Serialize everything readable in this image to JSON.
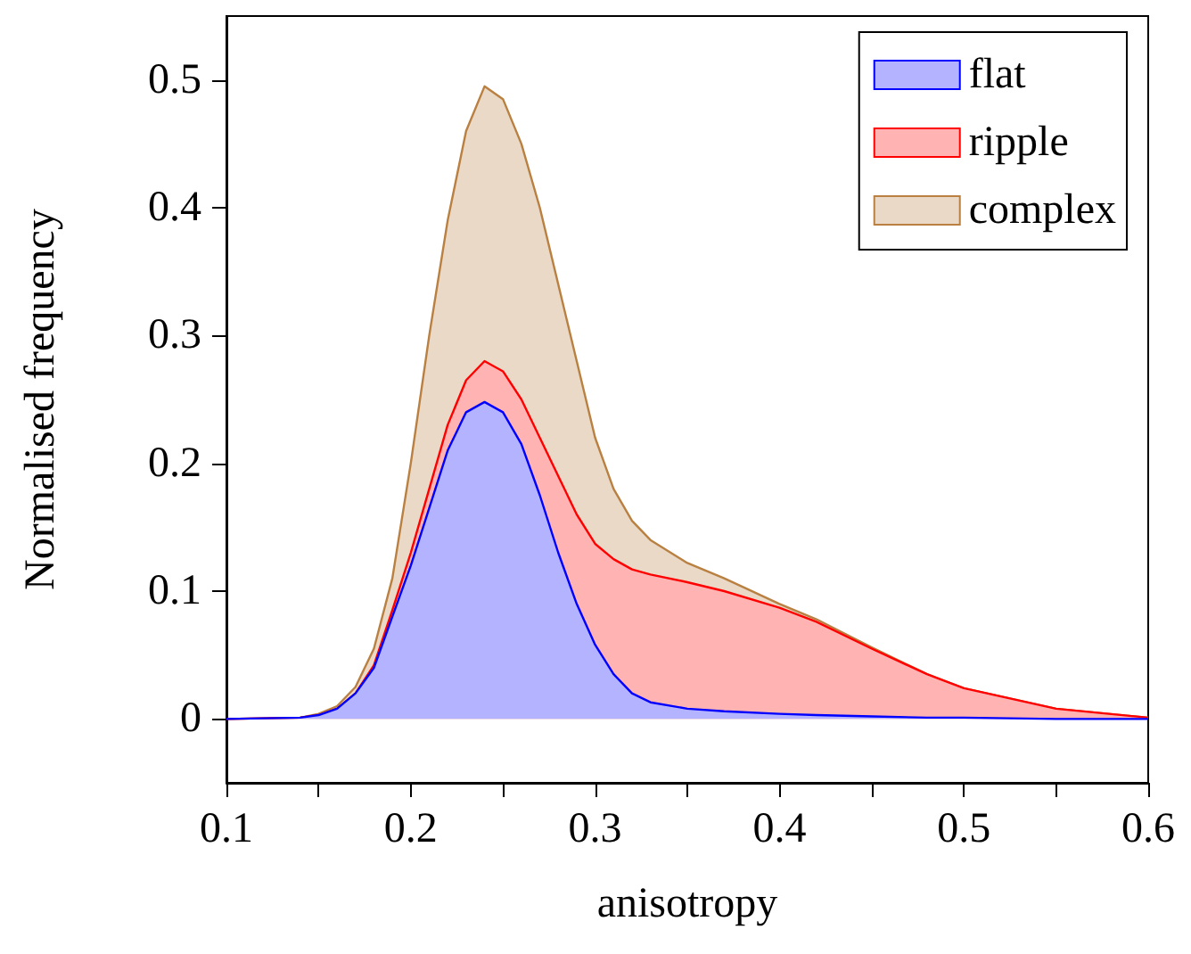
{
  "chart_data": {
    "type": "area",
    "stacked": true,
    "xlabel": "anisotropy",
    "ylabel": "Normalised frequency",
    "x": [
      0.1,
      0.14,
      0.15,
      0.16,
      0.17,
      0.18,
      0.19,
      0.2,
      0.21,
      0.22,
      0.23,
      0.24,
      0.25,
      0.26,
      0.27,
      0.28,
      0.29,
      0.3,
      0.31,
      0.32,
      0.33,
      0.35,
      0.37,
      0.4,
      0.42,
      0.45,
      0.48,
      0.5,
      0.55,
      0.6
    ],
    "series": [
      {
        "name": "flat",
        "color": "#0000ff",
        "values": [
          0,
          0.001,
          0.003,
          0.008,
          0.02,
          0.04,
          0.08,
          0.12,
          0.165,
          0.21,
          0.24,
          0.248,
          0.24,
          0.215,
          0.175,
          0.13,
          0.09,
          0.058,
          0.035,
          0.02,
          0.013,
          0.008,
          0.006,
          0.004,
          0.003,
          0.002,
          0.001,
          0.001,
          0,
          0
        ]
      },
      {
        "name": "ripple",
        "color": "#ff0000",
        "values": [
          0,
          0,
          0,
          0,
          0,
          0.002,
          0.005,
          0.01,
          0.015,
          0.02,
          0.025,
          0.032,
          0.032,
          0.035,
          0.045,
          0.06,
          0.07,
          0.079,
          0.09,
          0.097,
          0.1,
          0.099,
          0.094,
          0.083,
          0.073,
          0.053,
          0.034,
          0.023,
          0.008,
          0.001
        ]
      },
      {
        "name": "complex",
        "color": "#b98041",
        "values": [
          0,
          0,
          0.001,
          0.002,
          0.005,
          0.013,
          0.025,
          0.07,
          0.12,
          0.16,
          0.195,
          0.215,
          0.213,
          0.2,
          0.18,
          0.15,
          0.12,
          0.083,
          0.055,
          0.038,
          0.027,
          0.015,
          0.01,
          0.003,
          0.002,
          0.001,
          0,
          0,
          0,
          0
        ]
      }
    ],
    "xlim": [
      0.1,
      0.6
    ],
    "xticks": [
      0.1,
      {
        "value": 0.15,
        "label": null
      },
      0.2,
      {
        "value": 0.25,
        "label": null
      },
      0.3,
      {
        "value": 0.35,
        "label": null
      },
      0.4,
      {
        "value": 0.45,
        "label": null
      },
      0.5,
      {
        "value": 0.55,
        "label": null
      },
      0.6
    ],
    "ylim": [
      -0.05,
      0.55
    ],
    "yticks": [
      0,
      0.1,
      0.2,
      0.3,
      0.4,
      0.5
    ],
    "legend": "top right",
    "grid": false,
    "marker": "none",
    "line_style": "solid"
  }
}
